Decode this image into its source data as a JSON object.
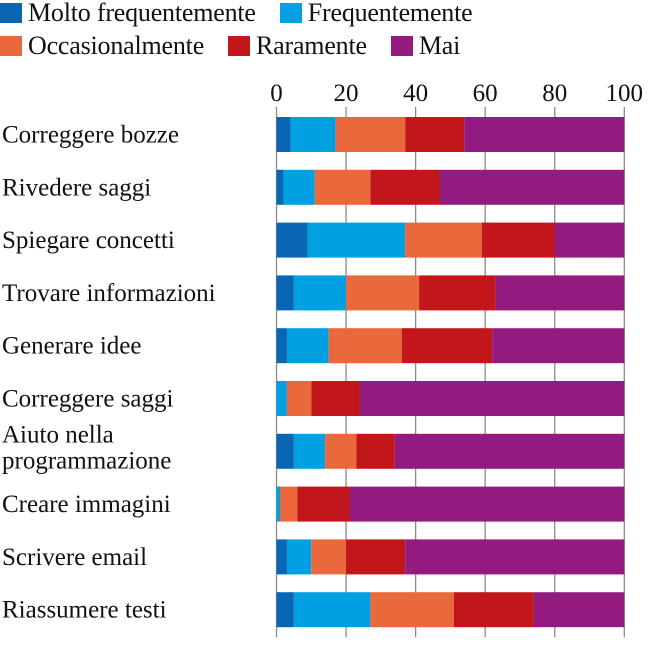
{
  "chart_data": {
    "type": "bar",
    "orientation": "horizontal",
    "stacked": true,
    "title": "",
    "xlabel": "",
    "ylabel": "",
    "xlim": [
      0,
      100
    ],
    "xticks": [
      "0",
      "20",
      "40",
      "60",
      "80",
      "100"
    ],
    "grid": true,
    "legend_position": "top",
    "categories": [
      "Correggere bozze",
      "Rivedere saggi",
      "Spiegare concetti",
      "Trovare informazioni",
      "Generare idee",
      "Correggere saggi",
      "Aiuto nella programmazione",
      "Creare immagini",
      "Scrivere email",
      "Riassumere testi"
    ],
    "category_lines": [
      [
        "Correggere bozze"
      ],
      [
        "Rivedere saggi"
      ],
      [
        "Spiegare concetti"
      ],
      [
        "Trovare informazioni"
      ],
      [
        "Generare idee"
      ],
      [
        "Correggere saggi"
      ],
      [
        "Aiuto nella",
        "programmazione"
      ],
      [
        "Creare immagini"
      ],
      [
        "Scrivere email"
      ],
      [
        "Riassumere testi"
      ]
    ],
    "series": [
      {
        "name": "Molto frequentemente",
        "color": "#0a66b2",
        "values": [
          4,
          2,
          9,
          5,
          3,
          0,
          5,
          0,
          3,
          5
        ]
      },
      {
        "name": "Frequentemente",
        "color": "#00a0e2",
        "values": [
          13,
          9,
          28,
          15,
          12,
          3,
          9,
          1,
          7,
          22
        ]
      },
      {
        "name": "Occasionalmente",
        "color": "#e9693c",
        "values": [
          20,
          16,
          22,
          21,
          21,
          7,
          9,
          5,
          10,
          24
        ]
      },
      {
        "name": "Raramente",
        "color": "#c1161a",
        "values": [
          17,
          20,
          21,
          22,
          26,
          14,
          11,
          15,
          17,
          23
        ]
      },
      {
        "name": "Mai",
        "color": "#931a7e",
        "values": [
          46,
          53,
          20,
          37,
          38,
          76,
          66,
          79,
          63,
          26
        ]
      }
    ]
  }
}
